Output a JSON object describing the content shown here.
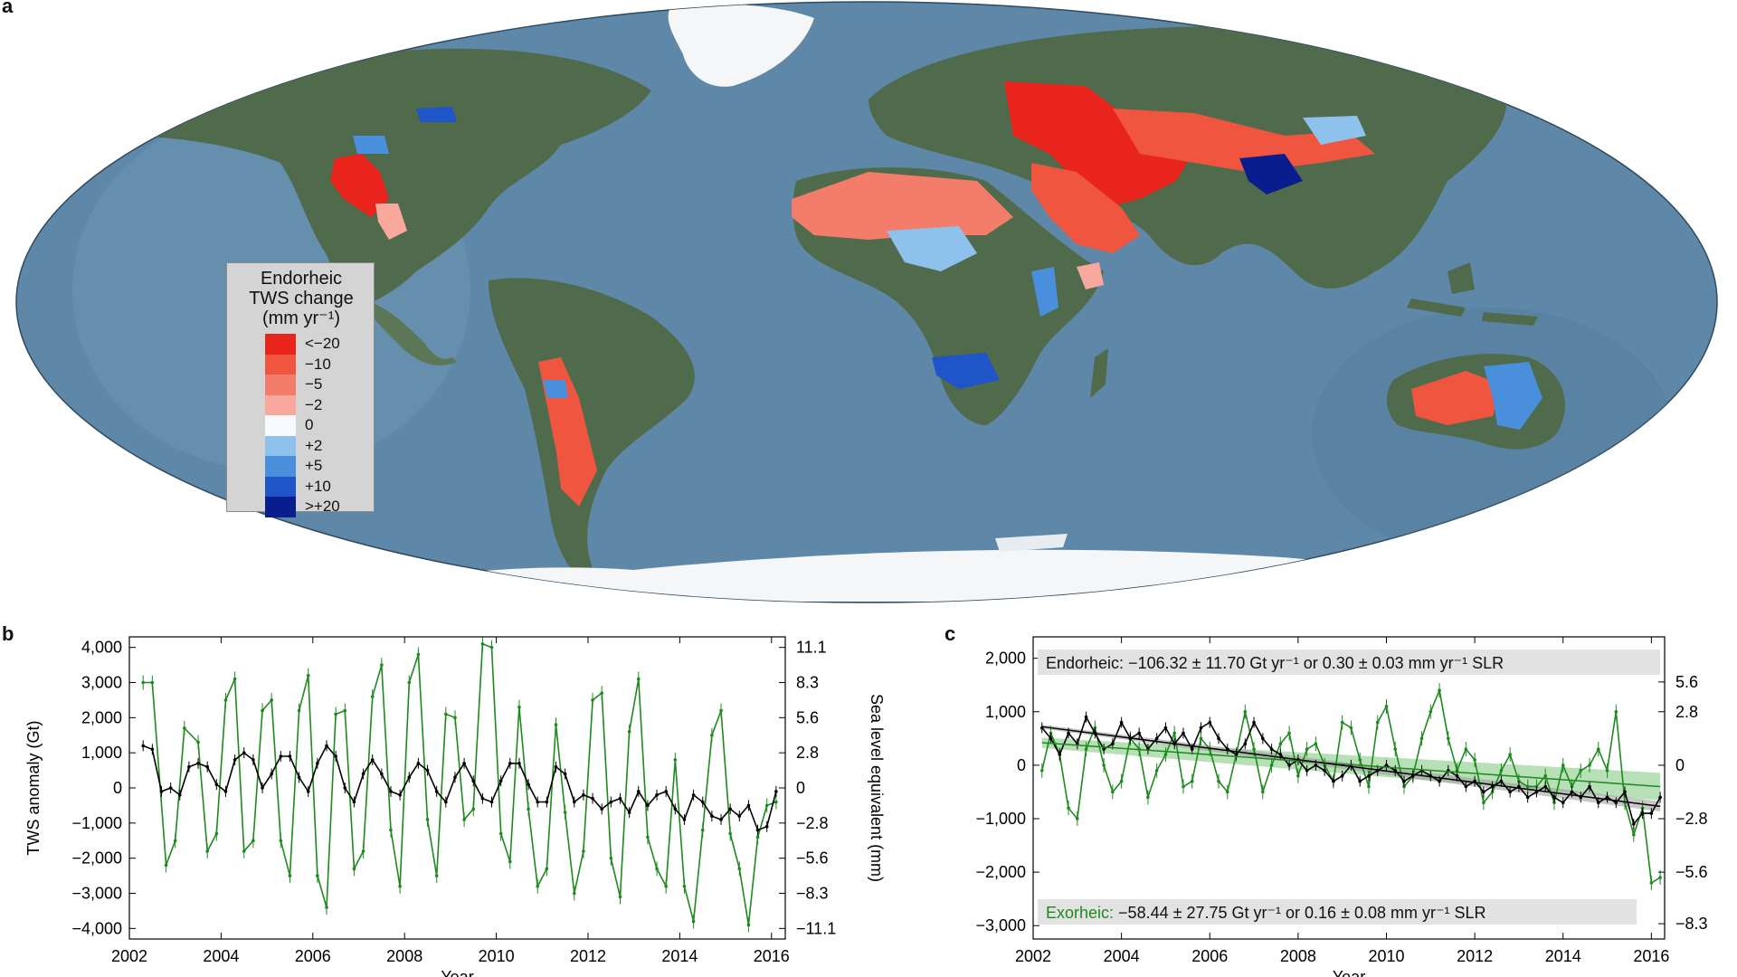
{
  "panel_labels": {
    "a": "a",
    "b": "b",
    "c": "c"
  },
  "legend": {
    "title_line1": "Endorheic",
    "title_line2": "TWS change",
    "title_line3": "(mm yr⁻¹)",
    "items": [
      {
        "label": "<−20",
        "color": "#e8241c"
      },
      {
        "label": "−10",
        "color": "#f0563f"
      },
      {
        "label": "−5",
        "color": "#f47c6b"
      },
      {
        "label": "−2",
        "color": "#f9a89d"
      },
      {
        "label": "0",
        "color": "#f7fbff"
      },
      {
        "label": "+2",
        "color": "#8ec2ec"
      },
      {
        "label": "+5",
        "color": "#4a8fdc"
      },
      {
        "label": "+10",
        "color": "#1f55c8"
      },
      {
        "label": ">+20",
        "color": "#0a1d8f"
      }
    ]
  },
  "map": {
    "ocean_color": "#5f88a8",
    "land_color": "#4f6b4c",
    "ice_color": "#f4f6f8"
  },
  "chart_data": [
    {
      "type": "line",
      "panel": "b",
      "xlabel": "Year",
      "ylabel": "TWS anomaly (Gt)",
      "ylabel_right": "Sea level equivalent (mm)",
      "xlim": [
        2002,
        2016.3
      ],
      "ylim": [
        -4300,
        4300
      ],
      "x_ticks": [
        2002,
        2004,
        2006,
        2008,
        2010,
        2012,
        2014,
        2016
      ],
      "y_ticks": [
        4000,
        3000,
        2000,
        1000,
        0,
        -1000,
        -2000,
        -3000,
        -4000
      ],
      "y_tick_labels": [
        "4,000",
        "3,000",
        "2,000",
        "1,000",
        "0",
        "−1,000",
        "−2,000",
        "−3,000",
        "−4,000"
      ],
      "y_right_ticks": [
        "11.1",
        "8.3",
        "5.6",
        "2.8",
        "0",
        "−2.8",
        "−5.6",
        "−8.3",
        "−11.1"
      ],
      "series": [
        {
          "color": "#1e8a1e",
          "x": [
            2002.3,
            2002.5,
            2002.8,
            2003.0,
            2003.2,
            2003.5,
            2003.7,
            2003.9,
            2004.1,
            2004.3,
            2004.5,
            2004.7,
            2004.9,
            2005.1,
            2005.3,
            2005.5,
            2005.7,
            2005.9,
            2006.1,
            2006.3,
            2006.5,
            2006.7,
            2006.9,
            2007.1,
            2007.3,
            2007.5,
            2007.7,
            2007.9,
            2008.1,
            2008.3,
            2008.5,
            2008.7,
            2008.9,
            2009.1,
            2009.3,
            2009.5,
            2009.7,
            2009.9,
            2010.1,
            2010.3,
            2010.5,
            2010.7,
            2010.9,
            2011.1,
            2011.3,
            2011.5,
            2011.7,
            2011.9,
            2012.1,
            2012.3,
            2012.5,
            2012.7,
            2012.9,
            2013.1,
            2013.3,
            2013.5,
            2013.7,
            2013.9,
            2014.1,
            2014.3,
            2014.5,
            2014.7,
            2014.9,
            2015.1,
            2015.3,
            2015.5,
            2015.7,
            2015.9,
            2016.1
          ],
          "y": [
            3000,
            3000,
            -2200,
            -1500,
            1700,
            1300,
            -1800,
            -1300,
            2500,
            3100,
            -1800,
            -1500,
            2200,
            2500,
            -1500,
            -2500,
            2200,
            3200,
            -2500,
            -3400,
            2100,
            2200,
            -2300,
            -1800,
            2600,
            3500,
            -1200,
            -2800,
            3000,
            3800,
            -900,
            -2500,
            2100,
            2000,
            -900,
            -600,
            4100,
            4000,
            -1300,
            -2100,
            2300,
            -600,
            -2800,
            -2300,
            1800,
            -700,
            -3000,
            -1800,
            2500,
            2700,
            -2000,
            -3100,
            1600,
            3100,
            -1400,
            -2300,
            -2800,
            800,
            -2800,
            -3800,
            -1200,
            1500,
            2200,
            -1300,
            -2300,
            -3900,
            -1400,
            -500,
            -400
          ]
        },
        {
          "color": "#000000",
          "x": [
            2002.3,
            2002.5,
            2002.7,
            2002.9,
            2003.1,
            2003.3,
            2003.5,
            2003.7,
            2003.9,
            2004.1,
            2004.3,
            2004.5,
            2004.7,
            2004.9,
            2005.1,
            2005.3,
            2005.5,
            2005.7,
            2005.9,
            2006.1,
            2006.3,
            2006.5,
            2006.7,
            2006.9,
            2007.1,
            2007.3,
            2007.5,
            2007.7,
            2007.9,
            2008.1,
            2008.3,
            2008.5,
            2008.7,
            2008.9,
            2009.1,
            2009.3,
            2009.5,
            2009.7,
            2009.9,
            2010.1,
            2010.3,
            2010.5,
            2010.7,
            2010.9,
            2011.1,
            2011.3,
            2011.5,
            2011.7,
            2011.9,
            2012.1,
            2012.3,
            2012.5,
            2012.7,
            2012.9,
            2013.1,
            2013.3,
            2013.5,
            2013.7,
            2013.9,
            2014.1,
            2014.3,
            2014.5,
            2014.7,
            2014.9,
            2015.1,
            2015.3,
            2015.5,
            2015.7,
            2015.9,
            2016.1
          ],
          "y": [
            1200,
            1100,
            -100,
            0,
            -200,
            600,
            700,
            600,
            100,
            -100,
            800,
            1000,
            800,
            0,
            400,
            900,
            900,
            300,
            -100,
            700,
            1200,
            900,
            0,
            -400,
            400,
            800,
            400,
            -100,
            -200,
            300,
            700,
            500,
            -100,
            -400,
            300,
            700,
            200,
            -300,
            -400,
            200,
            700,
            700,
            100,
            -400,
            -400,
            600,
            400,
            -400,
            -200,
            -300,
            -600,
            -400,
            -300,
            -700,
            -100,
            -500,
            -200,
            -100,
            -600,
            -900,
            -200,
            -400,
            -800,
            -900,
            -600,
            -800,
            -500,
            -1200,
            -1100,
            -100
          ]
        }
      ]
    },
    {
      "type": "line",
      "panel": "c",
      "xlabel": "Year",
      "xlim": [
        2002,
        2016.3
      ],
      "ylim": [
        -3250,
        2400
      ],
      "x_ticks": [
        2002,
        2004,
        2006,
        2008,
        2010,
        2012,
        2014,
        2016
      ],
      "y_ticks": [
        2000,
        1000,
        0,
        -1000,
        -2000,
        -3000
      ],
      "y_tick_labels": [
        "2,000",
        "1,000",
        "0",
        "−1,000",
        "−2,000",
        "−3,000"
      ],
      "y_right_values": [
        1557,
        1000,
        0,
        -1000,
        -2000,
        -2964
      ],
      "y_right_ticks": [
        "5.6",
        "2.8",
        "0",
        "−2.8",
        "−5.6",
        "−8.3"
      ],
      "annotation_top": "Endorheic: −106.32 ± 11.70 Gt yr⁻¹ or 0.30 ± 0.03 mm yr⁻¹ SLR",
      "annotation_bottom_prefix": "Exorheic:",
      "annotation_bottom_rest": " −58.44 ± 27.75 Gt yr⁻¹ or 0.16 ± 0.08 mm yr⁻¹ SLR",
      "trend_endorheic": {
        "x": [
          2002.2,
          2016.2
        ],
        "y": [
          720,
          -770
        ],
        "color": "#000000",
        "band_color": "#9a9a9a"
      },
      "trend_exorheic": {
        "x": [
          2002.2,
          2016.2
        ],
        "y": [
          420,
          -400
        ],
        "color": "#1e8a1e",
        "band_color": "#7cc67c"
      },
      "series": [
        {
          "color": "#1e8a1e",
          "x": [
            2002.2,
            2002.4,
            2002.6,
            2002.8,
            2003.0,
            2003.2,
            2003.4,
            2003.6,
            2003.8,
            2004.0,
            2004.2,
            2004.4,
            2004.6,
            2004.8,
            2005.0,
            2005.2,
            2005.4,
            2005.6,
            2005.8,
            2006.0,
            2006.2,
            2006.4,
            2006.6,
            2006.8,
            2007.0,
            2007.2,
            2007.4,
            2007.6,
            2007.8,
            2008.0,
            2008.2,
            2008.4,
            2008.6,
            2008.8,
            2009.0,
            2009.2,
            2009.4,
            2009.6,
            2009.8,
            2010.0,
            2010.2,
            2010.4,
            2010.6,
            2010.8,
            2011.0,
            2011.2,
            2011.4,
            2011.6,
            2011.8,
            2012.0,
            2012.2,
            2012.4,
            2012.6,
            2012.8,
            2013.0,
            2013.2,
            2013.4,
            2013.6,
            2013.8,
            2014.0,
            2014.2,
            2014.4,
            2014.6,
            2014.8,
            2015.0,
            2015.2,
            2015.4,
            2015.6,
            2015.8,
            2016.0,
            2016.2
          ],
          "y": [
            -100,
            600,
            200,
            -800,
            -1000,
            300,
            700,
            0,
            -500,
            -300,
            500,
            300,
            -600,
            -100,
            200,
            600,
            -400,
            -300,
            500,
            300,
            -300,
            -500,
            200,
            1000,
            300,
            -500,
            0,
            400,
            600,
            -200,
            300,
            400,
            0,
            -300,
            800,
            700,
            100,
            -400,
            800,
            1100,
            300,
            -400,
            -200,
            500,
            1000,
            1400,
            500,
            -100,
            300,
            100,
            -700,
            -500,
            -100,
            200,
            -300,
            -400,
            -400,
            -200,
            -700,
            0,
            -400,
            -100,
            0,
            300,
            -100,
            1000,
            -700,
            -1300,
            -800,
            -2200,
            -2100
          ]
        },
        {
          "color": "#000000",
          "x": [
            2002.2,
            2002.4,
            2002.6,
            2002.8,
            2003.0,
            2003.2,
            2003.4,
            2003.6,
            2003.8,
            2004.0,
            2004.2,
            2004.4,
            2004.6,
            2004.8,
            2005.0,
            2005.2,
            2005.4,
            2005.6,
            2005.8,
            2006.0,
            2006.2,
            2006.4,
            2006.6,
            2006.8,
            2007.0,
            2007.2,
            2007.4,
            2007.6,
            2007.8,
            2008.0,
            2008.2,
            2008.4,
            2008.6,
            2008.8,
            2009.0,
            2009.2,
            2009.4,
            2009.6,
            2009.8,
            2010.0,
            2010.2,
            2010.4,
            2010.6,
            2010.8,
            2011.0,
            2011.2,
            2011.4,
            2011.6,
            2011.8,
            2012.0,
            2012.2,
            2012.4,
            2012.6,
            2012.8,
            2013.0,
            2013.2,
            2013.4,
            2013.6,
            2013.8,
            2014.0,
            2014.2,
            2014.4,
            2014.6,
            2014.8,
            2015.0,
            2015.2,
            2015.4,
            2015.6,
            2015.8,
            2016.0,
            2016.2
          ],
          "y": [
            700,
            500,
            200,
            600,
            400,
            900,
            600,
            300,
            400,
            800,
            500,
            600,
            300,
            500,
            700,
            400,
            600,
            300,
            700,
            800,
            500,
            300,
            200,
            400,
            800,
            500,
            300,
            200,
            0,
            100,
            -100,
            0,
            -100,
            -300,
            -200,
            0,
            -300,
            -200,
            -100,
            0,
            -100,
            -300,
            -200,
            -100,
            -200,
            -300,
            -100,
            -200,
            -400,
            -300,
            -500,
            -400,
            -300,
            -500,
            -400,
            -600,
            -500,
            -400,
            -600,
            -700,
            -500,
            -600,
            -400,
            -700,
            -600,
            -700,
            -500,
            -1100,
            -900,
            -900,
            -600
          ]
        }
      ]
    }
  ]
}
